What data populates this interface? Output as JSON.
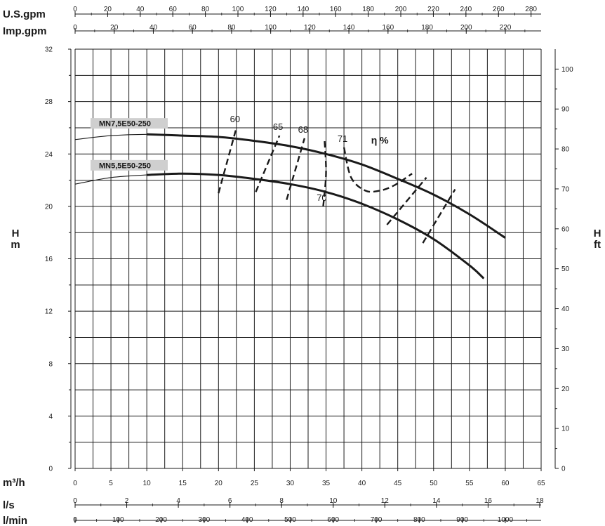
{
  "chart_data": {
    "type": "line",
    "x_units": {
      "us_gpm": {
        "label": "U.S.gpm",
        "ticks": [
          "0",
          "20",
          "40",
          "60",
          "80",
          "100",
          "120",
          "140",
          "160",
          "180",
          "200",
          "220",
          "240",
          "260",
          "280"
        ]
      },
      "imp_gpm": {
        "label": "Imp.gpm",
        "ticks": [
          "0",
          "20",
          "40",
          "60",
          "80",
          "100",
          "120",
          "140",
          "160",
          "180",
          "200",
          "220"
        ]
      },
      "m3h": {
        "label": "m³/h",
        "ticks": [
          "0",
          "5",
          "10",
          "15",
          "20",
          "25",
          "30",
          "35",
          "40",
          "45",
          "50",
          "55",
          "60",
          "65"
        ]
      },
      "ls": {
        "label": "l/s",
        "ticks": [
          "0",
          "2",
          "4",
          "6",
          "8",
          "10",
          "12",
          "14",
          "16",
          "18"
        ]
      },
      "lmin": {
        "label": "l/min",
        "ticks": [
          "0",
          "100",
          "200",
          "300",
          "400",
          "500",
          "600",
          "700",
          "800",
          "900",
          "1000"
        ]
      }
    },
    "y_left": {
      "label_top": "H",
      "label_bottom": "m",
      "ticks": [
        "0",
        "4",
        "8",
        "12",
        "16",
        "20",
        "24",
        "28",
        "32"
      ],
      "ylim": [
        0,
        32
      ]
    },
    "y_right": {
      "label_top": "H",
      "label_bottom": "ft",
      "ticks": [
        "0",
        "10",
        "20",
        "30",
        "40",
        "50",
        "60",
        "70",
        "80",
        "90",
        "100"
      ]
    },
    "xlim": [
      0,
      65
    ],
    "grid": true,
    "series": [
      {
        "name": "MN7,5E50-250",
        "x": [
          0,
          5,
          10,
          15,
          20,
          25,
          30,
          35,
          40,
          45,
          50,
          55,
          60
        ],
        "y": [
          25.1,
          25.4,
          25.5,
          25.4,
          25.3,
          25.0,
          24.6,
          24.0,
          23.2,
          22.1,
          20.9,
          19.4,
          17.6
        ]
      },
      {
        "name": "MN5,5E50-250",
        "x": [
          0,
          5,
          10,
          15,
          20,
          25,
          30,
          35,
          40,
          45,
          50,
          55,
          57
        ],
        "y": [
          21.7,
          22.2,
          22.4,
          22.5,
          22.4,
          22.1,
          21.7,
          21.1,
          20.2,
          19.0,
          17.5,
          15.5,
          14.5
        ]
      }
    ],
    "efficiency": {
      "label": "η %",
      "lines": [
        {
          "label": "60",
          "x": [
            20,
            22.5
          ],
          "y": [
            21.0,
            26.0
          ]
        },
        {
          "label": "65",
          "x": [
            25.2,
            28.5
          ],
          "y": [
            21.1,
            25.4
          ]
        },
        {
          "label": "68",
          "x": [
            29.5,
            32
          ],
          "y": [
            20.5,
            25.2
          ]
        },
        {
          "label": "70",
          "x": [
            34.6,
            35.0,
            34.8
          ],
          "y": [
            20.0,
            22.5,
            25.0
          ]
        },
        {
          "label": "71",
          "x": [
            37.5,
            38.5,
            40.5,
            42.5,
            44.5,
            47.0
          ],
          "y": [
            24.5,
            22.2,
            21.2,
            21.2,
            21.6,
            22.5
          ]
        },
        {
          "label": "",
          "x": [
            43.5,
            49
          ],
          "y": [
            18.6,
            22.2
          ]
        },
        {
          "label": "",
          "x": [
            48.5,
            53
          ],
          "y": [
            17.2,
            21.3
          ]
        }
      ]
    }
  }
}
